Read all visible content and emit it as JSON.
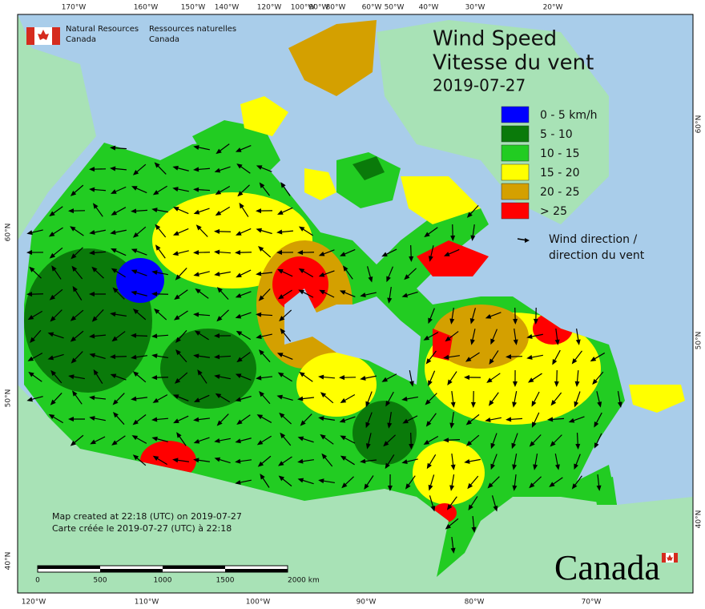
{
  "header": {
    "agency_en": "Natural Resources",
    "agency_en_country": "Canada",
    "agency_fr": "Ressources naturelles",
    "agency_fr_country": "Canada"
  },
  "title": {
    "en": "Wind Speed",
    "fr": "Vitesse du vent",
    "date": "2019-07-27"
  },
  "legend": {
    "items": [
      {
        "label": "0 - 5 km/h",
        "color": "#0000ff"
      },
      {
        "label": "5 - 10",
        "color": "#0a7a0a"
      },
      {
        "label": "10 - 15",
        "color": "#22cc22"
      },
      {
        "label": "15 - 20",
        "color": "#ffff00"
      },
      {
        "label": "20 - 25",
        "color": "#d4a000"
      },
      {
        "label": "> 25",
        "color": "#ff0000"
      }
    ],
    "arrow_label_en": "Wind direction /",
    "arrow_label_fr": "direction du vent"
  },
  "top_labels": [
    "170°W",
    "160°W",
    "150°W",
    "140°W",
    "120°W",
    "100°W",
    "90°W",
    "80°W",
    "60°W",
    "50°W",
    "40°W",
    "30°W",
    "20°W"
  ],
  "bottom_labels": [
    "120°W",
    "110°W",
    "100°W",
    "90°W",
    "80°W",
    "70°W"
  ],
  "left_labels": [
    "60°N",
    "50°N",
    "40°N"
  ],
  "right_labels": [
    "60°N",
    "50°N",
    "40°N"
  ],
  "scale": {
    "ticks": [
      "0",
      "500",
      "1000",
      "1500",
      "2000 km"
    ]
  },
  "credits": {
    "en": "Map created at 22:18 (UTC) on 2019-07-27",
    "fr": "Carte créée le 2019-07-27 (UTC) à 22:18"
  },
  "wordmark": "Canada"
}
